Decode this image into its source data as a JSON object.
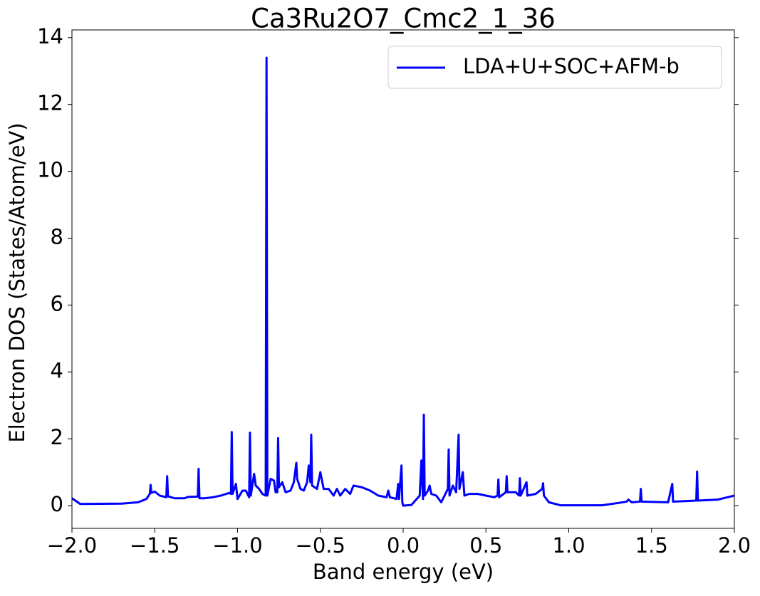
{
  "chart_data": {
    "type": "line",
    "title": "Ca3Ru2O7_Cmc2_1_36",
    "xlabel": "Band energy (eV)",
    "ylabel": "Electron DOS (States/Atom/eV)",
    "x": [
      -2.0,
      -1.95,
      -1.7,
      -1.6,
      -1.55,
      -1.53,
      -1.525,
      -1.52,
      -1.5,
      -1.47,
      -1.43,
      -1.425,
      -1.42,
      -1.38,
      -1.32,
      -1.3,
      -1.24,
      -1.235,
      -1.23,
      -1.2,
      -1.15,
      -1.1,
      -1.05,
      -1.04,
      -1.035,
      -1.03,
      -1.01,
      -1.0,
      -0.97,
      -0.95,
      -0.93,
      -0.925,
      -0.92,
      -0.9,
      -0.89,
      -0.87,
      -0.85,
      -0.83,
      -0.825,
      -0.82,
      -0.8,
      -0.78,
      -0.77,
      -0.76,
      -0.755,
      -0.75,
      -0.73,
      -0.71,
      -0.68,
      -0.66,
      -0.645,
      -0.64,
      -0.62,
      -0.6,
      -0.58,
      -0.57,
      -0.56,
      -0.555,
      -0.55,
      -0.52,
      -0.5,
      -0.48,
      -0.45,
      -0.42,
      -0.4,
      -0.38,
      -0.35,
      -0.32,
      -0.3,
      -0.25,
      -0.2,
      -0.15,
      -0.1,
      -0.09,
      -0.08,
      -0.04,
      -0.03,
      -0.025,
      -0.01,
      -0.005,
      0.0,
      0.05,
      0.1,
      0.11,
      0.12,
      0.125,
      0.13,
      0.15,
      0.16,
      0.17,
      0.2,
      0.23,
      0.25,
      0.27,
      0.275,
      0.28,
      0.3,
      0.32,
      0.335,
      0.34,
      0.36,
      0.37,
      0.4,
      0.45,
      0.5,
      0.55,
      0.57,
      0.575,
      0.58,
      0.62,
      0.625,
      0.63,
      0.68,
      0.7,
      0.705,
      0.71,
      0.745,
      0.75,
      0.8,
      0.84,
      0.845,
      0.85,
      0.88,
      0.95,
      1.2,
      1.3,
      1.35,
      1.36,
      1.38,
      1.43,
      1.435,
      1.44,
      1.6,
      1.625,
      1.63,
      1.77,
      1.775,
      1.78,
      1.9,
      2.0
    ],
    "series": [
      {
        "name": "LDA+U+SOC+AFM-b",
        "color": "#0000ff",
        "values": [
          0.22,
          0.05,
          0.06,
          0.1,
          0.2,
          0.35,
          0.62,
          0.38,
          0.42,
          0.3,
          0.25,
          0.88,
          0.28,
          0.22,
          0.22,
          0.26,
          0.27,
          1.1,
          0.22,
          0.22,
          0.25,
          0.3,
          0.38,
          0.35,
          2.2,
          0.35,
          0.65,
          0.2,
          0.45,
          0.45,
          0.25,
          2.18,
          0.3,
          0.95,
          0.6,
          0.5,
          0.35,
          0.3,
          13.4,
          0.3,
          0.8,
          0.75,
          0.4,
          0.4,
          2.02,
          0.55,
          0.7,
          0.4,
          0.45,
          0.7,
          1.28,
          0.8,
          0.5,
          0.45,
          0.7,
          1.2,
          0.7,
          2.12,
          0.6,
          0.5,
          1.0,
          0.5,
          0.5,
          0.3,
          0.5,
          0.3,
          0.5,
          0.35,
          0.6,
          0.55,
          0.45,
          0.3,
          0.25,
          0.45,
          0.25,
          0.2,
          0.65,
          0.2,
          1.2,
          0.1,
          0.0,
          0.02,
          0.3,
          1.35,
          0.2,
          2.72,
          0.3,
          0.45,
          0.6,
          0.35,
          0.3,
          0.1,
          0.3,
          0.5,
          1.68,
          0.3,
          0.6,
          0.4,
          2.12,
          0.5,
          1.0,
          0.3,
          0.35,
          0.35,
          0.3,
          0.25,
          0.3,
          0.78,
          0.25,
          0.4,
          0.88,
          0.4,
          0.4,
          0.3,
          0.82,
          0.3,
          0.7,
          0.3,
          0.35,
          0.5,
          0.67,
          0.3,
          0.1,
          0.01,
          0.01,
          0.08,
          0.12,
          0.18,
          0.1,
          0.12,
          0.5,
          0.12,
          0.1,
          0.65,
          0.12,
          0.15,
          1.02,
          0.15,
          0.18,
          0.3
        ]
      }
    ],
    "xlim": [
      -2.0,
      2.0
    ],
    "ylim": [
      -0.68,
      14.23
    ],
    "xticks": [
      {
        "value": -2.0,
        "label": "−2.0"
      },
      {
        "value": -1.5,
        "label": "−1.5"
      },
      {
        "value": -1.0,
        "label": "−1.0"
      },
      {
        "value": -0.5,
        "label": "−0.5"
      },
      {
        "value": 0.0,
        "label": "0.0"
      },
      0.5,
      {
        "value": 1.0,
        "label": "1.0"
      },
      1.5,
      {
        "value": 2.0,
        "label": "2.0"
      }
    ],
    "yticks": [
      0,
      2,
      4,
      6,
      8,
      10,
      12,
      14
    ],
    "legend": "upper right"
  }
}
